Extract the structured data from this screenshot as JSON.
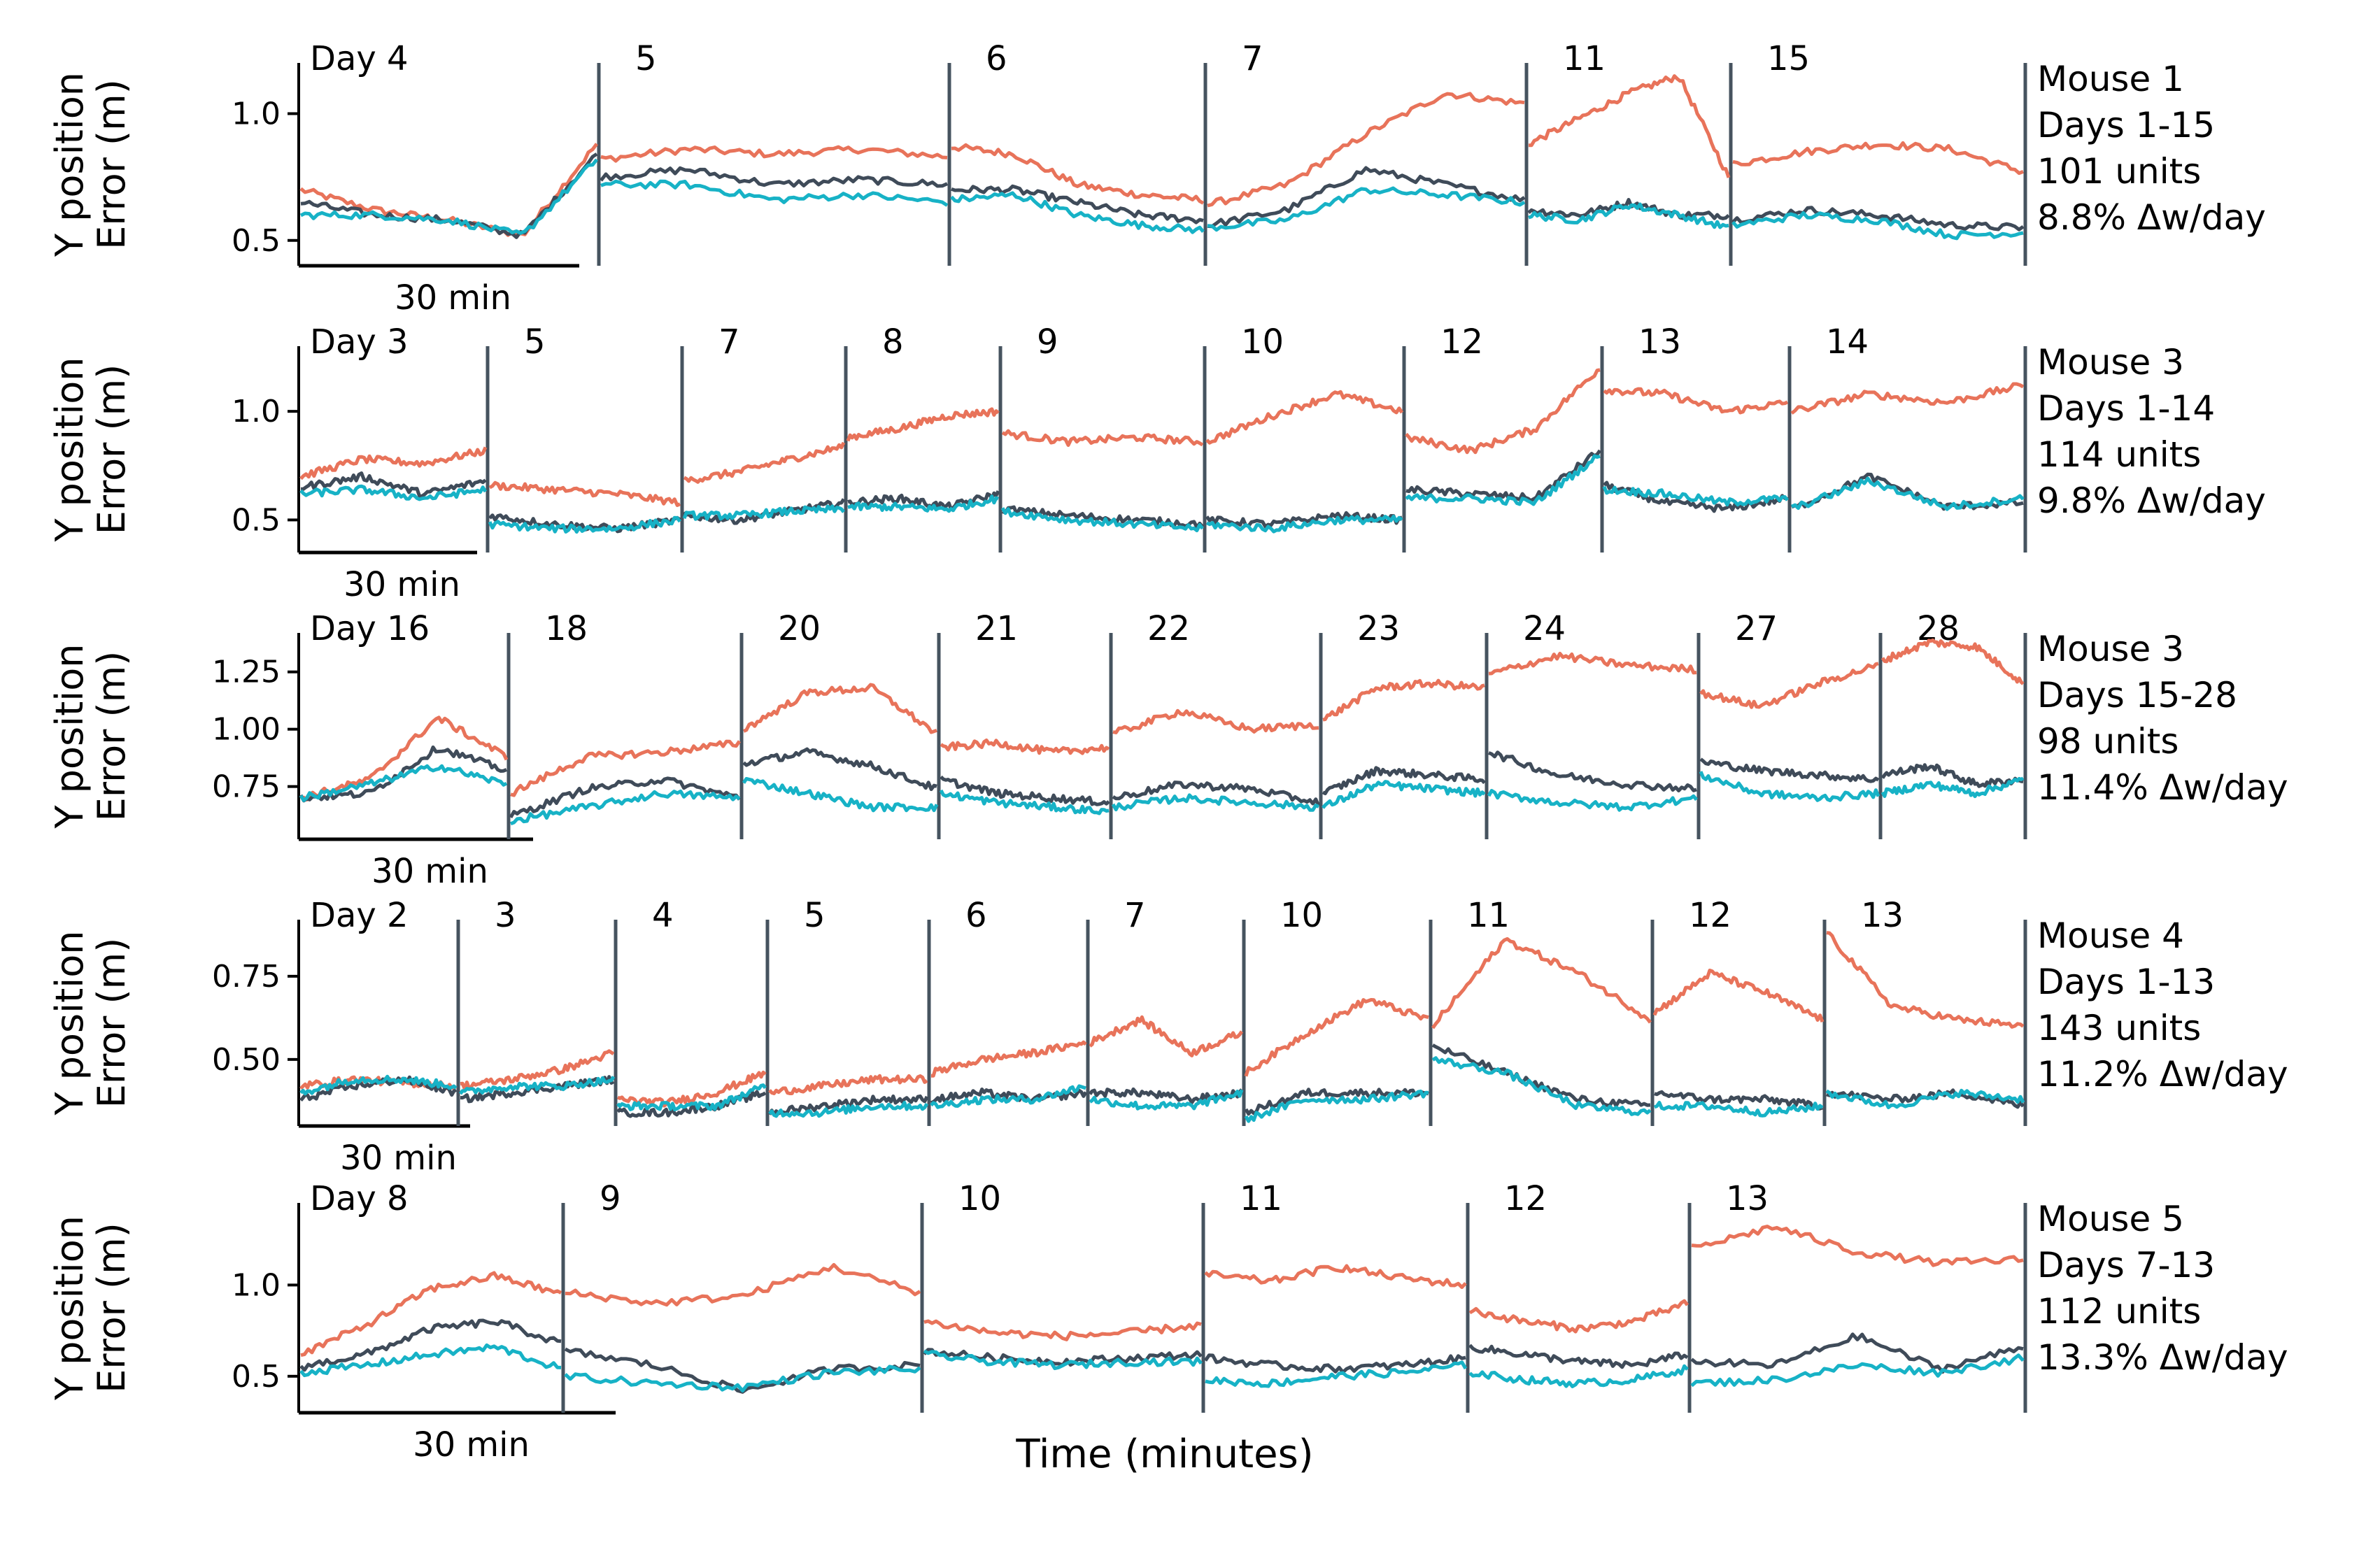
{
  "figure": {
    "xlabel": "Time (minutes)",
    "ylabel": [
      "Y position",
      "Error (m)"
    ],
    "scale_bar_label": "30 min",
    "colors": {
      "series_a": "#E8735A",
      "series_b": "#3F4B59",
      "series_c": "#17B2C6",
      "separator": "#46535F",
      "axis": "#000000"
    }
  },
  "chart_data": [
    {
      "type": "line",
      "ylim": [
        0.4,
        1.2
      ],
      "yticks": [
        0.5,
        1.0
      ],
      "ytick_labels": [
        "0.5",
        "1.0"
      ],
      "days": [
        "Day 4",
        "5",
        "6",
        "7",
        "11",
        "15"
      ],
      "info": [
        "Mouse 1",
        "Days 1-15",
        "101 units",
        "8.8% Δw/day"
      ],
      "series": [
        {
          "color": "#E8735A",
          "values": [
            0.7,
            0.62,
            0.58,
            0.52,
            0.88,
            0.82,
            0.86,
            0.84,
            0.86,
            0.83,
            0.87,
            0.84,
            0.72,
            0.68,
            0.66,
            0.64,
            0.72,
            0.92,
            1.08,
            1.04,
            0.88,
            0.98,
            1.08,
            1.15,
            0.75,
            0.8,
            0.85,
            0.88,
            0.86,
            0.77
          ]
        },
        {
          "color": "#3F4B59",
          "values": [
            0.65,
            0.6,
            0.58,
            0.52,
            0.84,
            0.75,
            0.78,
            0.72,
            0.74,
            0.72,
            0.7,
            0.7,
            0.65,
            0.6,
            0.58,
            0.56,
            0.62,
            0.78,
            0.72,
            0.66,
            0.62,
            0.6,
            0.65,
            0.6,
            0.6,
            0.58,
            0.62,
            0.6,
            0.56,
            0.55
          ]
        },
        {
          "color": "#17B2C6",
          "values": [
            0.6,
            0.6,
            0.58,
            0.52,
            0.82,
            0.72,
            0.72,
            0.66,
            0.68,
            0.65,
            0.66,
            0.68,
            0.6,
            0.56,
            0.54,
            0.55,
            0.58,
            0.7,
            0.68,
            0.65,
            0.6,
            0.58,
            0.64,
            0.6,
            0.55,
            0.56,
            0.6,
            0.58,
            0.52,
            0.53
          ]
        }
      ]
    },
    {
      "type": "line",
      "ylim": [
        0.35,
        1.3
      ],
      "yticks": [
        0.5,
        1.0
      ],
      "ytick_labels": [
        "0.5",
        "1.0"
      ],
      "days": [
        "Day 3",
        "5",
        "7",
        "8",
        "9",
        "10",
        "12",
        "13",
        "14"
      ],
      "info": [
        "Mouse 3",
        "Days 1-14",
        "114 units",
        "9.8% Δw/day"
      ],
      "series": [
        {
          "color": "#E8735A",
          "values": [
            0.7,
            0.78,
            0.76,
            0.82,
            0.66,
            0.64,
            0.62,
            0.58,
            0.68,
            0.72,
            0.78,
            0.84,
            0.88,
            0.92,
            0.98,
            1.0,
            0.9,
            0.86,
            0.88,
            0.86,
            0.86,
            0.98,
            1.08,
            1.0,
            0.88,
            0.82,
            0.92,
            1.2,
            1.1,
            1.08,
            1.0,
            1.04,
            1.0,
            1.08,
            1.04,
            1.12
          ]
        },
        {
          "color": "#3F4B59",
          "values": [
            0.65,
            0.7,
            0.62,
            0.68,
            0.52,
            0.48,
            0.46,
            0.5,
            0.52,
            0.5,
            0.54,
            0.58,
            0.58,
            0.6,
            0.56,
            0.62,
            0.55,
            0.52,
            0.5,
            0.48,
            0.5,
            0.48,
            0.52,
            0.5,
            0.64,
            0.62,
            0.6,
            0.82,
            0.66,
            0.58,
            0.55,
            0.6,
            0.55,
            0.7,
            0.56,
            0.58
          ]
        },
        {
          "color": "#17B2C6",
          "values": [
            0.62,
            0.64,
            0.6,
            0.64,
            0.48,
            0.46,
            0.46,
            0.5,
            0.52,
            0.52,
            0.54,
            0.55,
            0.56,
            0.56,
            0.55,
            0.6,
            0.54,
            0.5,
            0.48,
            0.46,
            0.48,
            0.46,
            0.5,
            0.5,
            0.6,
            0.6,
            0.58,
            0.8,
            0.64,
            0.62,
            0.58,
            0.6,
            0.55,
            0.68,
            0.56,
            0.6
          ]
        }
      ]
    },
    {
      "type": "line",
      "ylim": [
        0.52,
        1.42
      ],
      "yticks": [
        0.75,
        1.0,
        1.25
      ],
      "ytick_labels": [
        "0.75",
        "1.00",
        "1.25"
      ],
      "days": [
        "Day 16",
        "18",
        "20",
        "21",
        "22",
        "23",
        "24",
        "27",
        "28"
      ],
      "info": [
        "Mouse 3",
        "Days 15-28",
        "98 units",
        "11.4% Δw/day"
      ],
      "series": [
        {
          "color": "#E8735A",
          "values": [
            0.7,
            0.78,
            1.05,
            0.88,
            0.72,
            0.88,
            0.9,
            0.94,
            1.0,
            1.16,
            1.18,
            0.98,
            0.92,
            0.94,
            0.9,
            0.92,
            0.98,
            1.08,
            1.0,
            1.02,
            1.04,
            1.18,
            1.2,
            1.18,
            1.24,
            1.32,
            1.28,
            1.26,
            1.16,
            1.1,
            1.2,
            1.28,
            1.3,
            1.38,
            1.36,
            1.2
          ]
        },
        {
          "color": "#3F4B59",
          "values": [
            0.7,
            0.72,
            0.92,
            0.82,
            0.62,
            0.74,
            0.78,
            0.7,
            0.85,
            0.9,
            0.84,
            0.74,
            0.78,
            0.72,
            0.7,
            0.68,
            0.7,
            0.76,
            0.74,
            0.68,
            0.72,
            0.82,
            0.8,
            0.78,
            0.9,
            0.8,
            0.76,
            0.74,
            0.86,
            0.82,
            0.8,
            0.78,
            0.8,
            0.84,
            0.76,
            0.78
          ]
        },
        {
          "color": "#17B2C6",
          "values": [
            0.7,
            0.76,
            0.84,
            0.76,
            0.6,
            0.66,
            0.72,
            0.7,
            0.78,
            0.72,
            0.66,
            0.66,
            0.72,
            0.68,
            0.66,
            0.64,
            0.66,
            0.7,
            0.68,
            0.66,
            0.66,
            0.76,
            0.74,
            0.72,
            0.72,
            0.68,
            0.66,
            0.7,
            0.8,
            0.72,
            0.7,
            0.72,
            0.72,
            0.76,
            0.72,
            0.78
          ]
        }
      ]
    },
    {
      "type": "line",
      "ylim": [
        0.3,
        0.92
      ],
      "yticks": [
        0.5,
        0.75
      ],
      "ytick_labels": [
        "0.50",
        "0.75"
      ],
      "days": [
        "Day 2",
        "3",
        "4",
        "5",
        "6",
        "7",
        "10",
        "11",
        "12",
        "13"
      ],
      "info": [
        "Mouse 4",
        "Days 1-13",
        "143 units",
        "11.2% Δw/day"
      ],
      "series": [
        {
          "color": "#E8735A",
          "values": [
            0.42,
            0.44,
            0.43,
            0.42,
            0.42,
            0.44,
            0.47,
            0.52,
            0.38,
            0.37,
            0.4,
            0.46,
            0.4,
            0.42,
            0.44,
            0.44,
            0.46,
            0.5,
            0.52,
            0.55,
            0.55,
            0.62,
            0.52,
            0.58,
            0.46,
            0.58,
            0.68,
            0.62,
            0.6,
            0.86,
            0.76,
            0.62,
            0.64,
            0.76,
            0.7,
            0.62,
            0.88,
            0.66,
            0.62,
            0.6
          ]
        },
        {
          "color": "#3F4B59",
          "values": [
            0.38,
            0.42,
            0.44,
            0.4,
            0.38,
            0.4,
            0.42,
            0.44,
            0.34,
            0.34,
            0.36,
            0.4,
            0.34,
            0.36,
            0.38,
            0.38,
            0.38,
            0.4,
            0.38,
            0.4,
            0.4,
            0.4,
            0.38,
            0.4,
            0.34,
            0.4,
            0.4,
            0.4,
            0.54,
            0.46,
            0.38,
            0.36,
            0.4,
            0.38,
            0.38,
            0.36,
            0.4,
            0.38,
            0.4,
            0.36
          ]
        },
        {
          "color": "#17B2C6",
          "values": [
            0.4,
            0.44,
            0.44,
            0.42,
            0.4,
            0.42,
            0.42,
            0.44,
            0.36,
            0.36,
            0.36,
            0.42,
            0.34,
            0.34,
            0.36,
            0.36,
            0.36,
            0.38,
            0.38,
            0.42,
            0.38,
            0.36,
            0.36,
            0.4,
            0.32,
            0.38,
            0.38,
            0.4,
            0.5,
            0.46,
            0.36,
            0.34,
            0.36,
            0.36,
            0.34,
            0.36,
            0.4,
            0.36,
            0.4,
            0.38
          ]
        }
      ]
    },
    {
      "type": "line",
      "ylim": [
        0.3,
        1.45
      ],
      "yticks": [
        0.5,
        1.0
      ],
      "ytick_labels": [
        "0.5",
        "1.0"
      ],
      "days": [
        "Day 8",
        "9",
        "10",
        "11",
        "12",
        "13"
      ],
      "info": [
        "Mouse 5",
        "Days 7-13",
        "112 units",
        "13.3% Δw/day"
      ],
      "series": [
        {
          "color": "#E8735A",
          "values": [
            0.62,
            0.78,
            0.98,
            1.05,
            0.95,
            0.96,
            0.9,
            0.94,
            1.1,
            0.96,
            0.8,
            0.74,
            0.72,
            0.74,
            0.78,
            1.06,
            1.02,
            1.1,
            1.04,
            1.0,
            0.86,
            0.8,
            0.76,
            0.8,
            0.9,
            1.2,
            1.32,
            1.18,
            1.12,
            1.14
          ]
        },
        {
          "color": "#3F4B59",
          "values": [
            0.55,
            0.62,
            0.76,
            0.8,
            0.68,
            0.64,
            0.56,
            0.42,
            0.54,
            0.56,
            0.64,
            0.6,
            0.58,
            0.6,
            0.62,
            0.6,
            0.56,
            0.54,
            0.56,
            0.6,
            0.66,
            0.62,
            0.58,
            0.56,
            0.62,
            0.58,
            0.56,
            0.72,
            0.54,
            0.66
          ]
        },
        {
          "color": "#17B2C6",
          "values": [
            0.52,
            0.56,
            0.62,
            0.66,
            0.54,
            0.5,
            0.46,
            0.44,
            0.52,
            0.54,
            0.62,
            0.58,
            0.56,
            0.58,
            0.58,
            0.48,
            0.46,
            0.5,
            0.52,
            0.56,
            0.52,
            0.48,
            0.46,
            0.48,
            0.54,
            0.46,
            0.48,
            0.56,
            0.52,
            0.6
          ]
        }
      ]
    }
  ]
}
